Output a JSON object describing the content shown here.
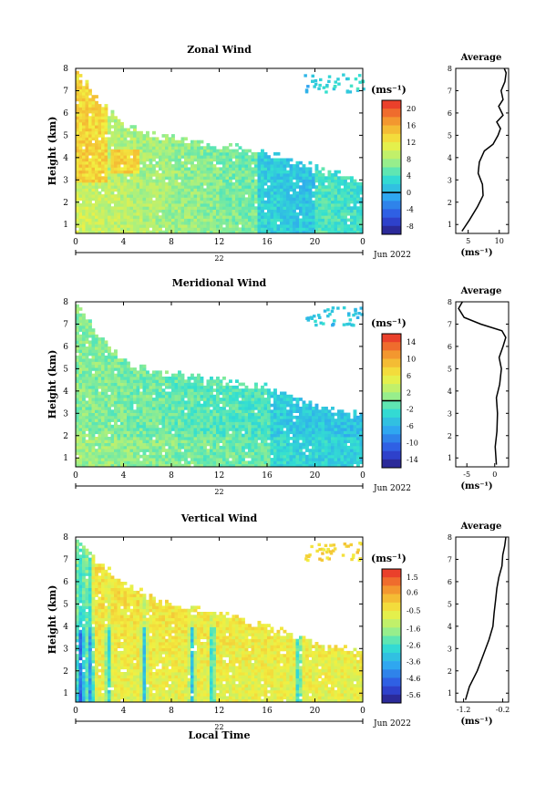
{
  "chart_data": [
    {
      "type": "heatmap",
      "title": "Zonal Wind",
      "xlabel": "",
      "ylabel": "Height (km)",
      "xlim": [
        0,
        24
      ],
      "ylim": [
        0.6,
        8
      ],
      "x_ticks": [
        "0",
        "4",
        "8",
        "12",
        "16",
        "20",
        "0"
      ],
      "y_ticks": [
        "1",
        "2",
        "3",
        "4",
        "5",
        "6",
        "7",
        "8"
      ],
      "date_day": "22",
      "date_month": "Jun 2022",
      "top_height_profile_km": [
        [
          0,
          7.9
        ],
        [
          2,
          6.4
        ],
        [
          4,
          5.6
        ],
        [
          6,
          5.1
        ],
        [
          8,
          4.9
        ],
        [
          12,
          4.6
        ],
        [
          16,
          4.2
        ],
        [
          20,
          3.6
        ],
        [
          24,
          3.0
        ]
      ],
      "colorbar": {
        "unit": "(ms⁻¹)",
        "ticks": [
          "20",
          "16",
          "12",
          "8",
          "4",
          "0",
          "-4",
          "-8"
        ],
        "range": [
          -10,
          22
        ],
        "marker_value": 0
      },
      "average": {
        "title": "Average",
        "xlabel": "(ms⁻¹)",
        "x_ticks": [
          "5",
          "10"
        ],
        "x_tick_values": [
          5,
          10
        ],
        "xlim": [
          3,
          11.5
        ],
        "ylim": [
          0.6,
          8
        ],
        "y_ticks": [
          "1",
          "2",
          "3",
          "4",
          "5",
          "6",
          "7",
          "8"
        ],
        "profile": [
          [
            4,
            0.7
          ],
          [
            5.2,
            1.2
          ],
          [
            6.5,
            1.8
          ],
          [
            7.4,
            2.3
          ],
          [
            7.3,
            2.8
          ],
          [
            6.6,
            3.3
          ],
          [
            6.8,
            3.8
          ],
          [
            7.6,
            4.3
          ],
          [
            9.0,
            4.6
          ],
          [
            9.8,
            5.0
          ],
          [
            10.2,
            5.3
          ],
          [
            9.6,
            5.6
          ],
          [
            10.6,
            5.9
          ],
          [
            9.9,
            6.3
          ],
          [
            10.6,
            6.6
          ],
          [
            10.3,
            7.0
          ],
          [
            10.9,
            7.4
          ],
          [
            11.1,
            7.8
          ],
          [
            10.8,
            8.0
          ]
        ]
      }
    },
    {
      "type": "heatmap",
      "title": "Meridional Wind",
      "xlabel": "",
      "ylabel": "Height (km)",
      "xlim": [
        0,
        24
      ],
      "ylim": [
        0.6,
        8
      ],
      "x_ticks": [
        "0",
        "4",
        "8",
        "12",
        "16",
        "20",
        "0"
      ],
      "y_ticks": [
        "1",
        "2",
        "3",
        "4",
        "5",
        "6",
        "7",
        "8"
      ],
      "date_day": "22",
      "date_month": "Jun 2022",
      "top_height_profile_km": [
        [
          0,
          7.9
        ],
        [
          2,
          6.4
        ],
        [
          4,
          5.4
        ],
        [
          6,
          5.0
        ],
        [
          8,
          4.8
        ],
        [
          12,
          4.5
        ],
        [
          16,
          4.2
        ],
        [
          20,
          3.4
        ],
        [
          24,
          2.9
        ]
      ],
      "colorbar": {
        "unit": "(ms⁻¹)",
        "ticks": [
          "14",
          "10",
          "6",
          "2",
          "-2",
          "-6",
          "-10",
          "-14"
        ],
        "range": [
          -16,
          16
        ],
        "marker_value": 0
      },
      "average": {
        "title": "Average",
        "xlabel": "(ms⁻¹)",
        "x_ticks": [
          "-5",
          "0"
        ],
        "x_tick_values": [
          -5,
          0
        ],
        "xlim": [
          -7,
          2.5
        ],
        "ylim": [
          0.6,
          8
        ],
        "y_ticks": [
          "1",
          "2",
          "3",
          "4",
          "5",
          "6",
          "7",
          "8"
        ],
        "profile": [
          [
            0.3,
            0.7
          ],
          [
            0.1,
            1.5
          ],
          [
            0.4,
            2.2
          ],
          [
            0.5,
            3.0
          ],
          [
            0.3,
            3.7
          ],
          [
            0.9,
            4.3
          ],
          [
            1.2,
            5.0
          ],
          [
            0.8,
            5.5
          ],
          [
            1.5,
            6.0
          ],
          [
            2.0,
            6.4
          ],
          [
            1.3,
            6.7
          ],
          [
            -2.5,
            7.0
          ],
          [
            -5.5,
            7.3
          ],
          [
            -6.5,
            7.7
          ],
          [
            -5.8,
            8.0
          ]
        ]
      }
    },
    {
      "type": "heatmap",
      "title": "Vertical Wind",
      "xlabel": "Local Time",
      "ylabel": "Height (km)",
      "xlim": [
        0,
        24
      ],
      "ylim": [
        0.6,
        8
      ],
      "x_ticks": [
        "0",
        "4",
        "8",
        "12",
        "16",
        "20",
        "0"
      ],
      "y_ticks": [
        "1",
        "2",
        "3",
        "4",
        "5",
        "6",
        "7",
        "8"
      ],
      "date_day": "22",
      "date_month": "Jun 2022",
      "top_height_profile_km": [
        [
          0,
          7.9
        ],
        [
          2,
          6.8
        ],
        [
          4,
          6.0
        ],
        [
          6,
          5.4
        ],
        [
          8,
          5.0
        ],
        [
          12,
          4.6
        ],
        [
          16,
          4.0
        ],
        [
          20,
          3.3
        ],
        [
          24,
          2.9
        ]
      ],
      "colorbar": {
        "unit": "(ms⁻¹)",
        "ticks": [
          "1.5",
          "0.6",
          "-0.5",
          "-1.6",
          "-2.6",
          "-3.6",
          "-4.6",
          "-5.6"
        ],
        "range": [
          -6.1,
          2.0
        ]
      },
      "average": {
        "title": "Average",
        "xlabel": "(ms⁻¹)",
        "x_ticks": [
          "-1.2",
          "-0.2"
        ],
        "x_tick_values": [
          -1.2,
          -0.2
        ],
        "xlim": [
          -1.4,
          -0.05
        ],
        "ylim": [
          0.6,
          8
        ],
        "y_ticks": [
          "1",
          "2",
          "3",
          "4",
          "5",
          "6",
          "7",
          "8"
        ],
        "profile": [
          [
            -1.15,
            0.7
          ],
          [
            -1.05,
            1.3
          ],
          [
            -0.85,
            2.0
          ],
          [
            -0.7,
            2.7
          ],
          [
            -0.55,
            3.4
          ],
          [
            -0.45,
            4.0
          ],
          [
            -0.42,
            4.6
          ],
          [
            -0.38,
            5.2
          ],
          [
            -0.35,
            5.7
          ],
          [
            -0.3,
            6.2
          ],
          [
            -0.22,
            6.7
          ],
          [
            -0.2,
            7.2
          ],
          [
            -0.15,
            7.6
          ],
          [
            -0.12,
            8.0
          ]
        ]
      }
    }
  ]
}
